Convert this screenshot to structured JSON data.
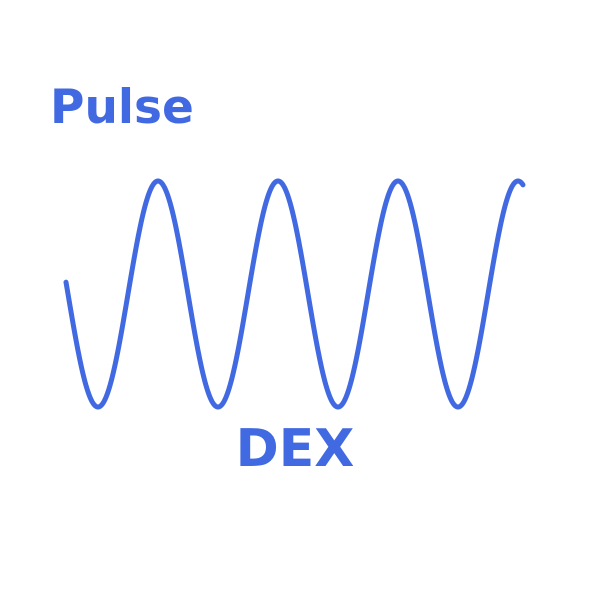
{
  "logo": {
    "top_word": "Pulse",
    "bottom_word": "DEX",
    "wave_icon": "sine-wave-icon",
    "brand_color": "#4169E1",
    "background_color": "#FFFFFF"
  }
}
